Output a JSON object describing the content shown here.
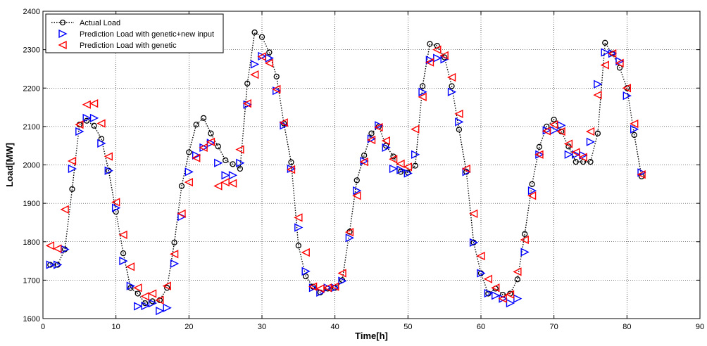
{
  "chart_data": {
    "type": "line",
    "title": "",
    "xlabel": "Time[h]",
    "ylabel": "Load[MW]",
    "xlim": [
      0,
      90
    ],
    "ylim": [
      1600,
      2400
    ],
    "xticks": [
      0,
      10,
      20,
      30,
      40,
      50,
      60,
      70,
      80,
      90
    ],
    "yticks": [
      1600,
      1700,
      1800,
      1900,
      2000,
      2100,
      2200,
      2300,
      2400
    ],
    "grid": true,
    "legend_position": "top-left",
    "series": [
      {
        "name": "Actual Load",
        "color": "#000000",
        "marker": "circle",
        "line": "dotted",
        "x": [
          1,
          2,
          3,
          4,
          5,
          6,
          7,
          8,
          9,
          10,
          11,
          12,
          13,
          14,
          15,
          16,
          17,
          18,
          19,
          20,
          21,
          22,
          23,
          24,
          25,
          26,
          27,
          28,
          29,
          30,
          31,
          32,
          33,
          34,
          35,
          36,
          37,
          38,
          39,
          40,
          41,
          42,
          43,
          44,
          45,
          46,
          47,
          48,
          49,
          50,
          51,
          52,
          53,
          54,
          55,
          56,
          57,
          58,
          59,
          60,
          61,
          62,
          63,
          64,
          65,
          66,
          67,
          68,
          69,
          70,
          71,
          72,
          73,
          74,
          75,
          76,
          77,
          78,
          79,
          80,
          81,
          82
        ],
        "y": [
          1740,
          1740,
          1780,
          1937,
          2105,
          2115,
          2102,
          2068,
          1985,
          1878,
          1770,
          1680,
          1665,
          1640,
          1645,
          1648,
          1680,
          1798,
          1945,
          2033,
          2105,
          2122,
          2082,
          2048,
          2012,
          2002,
          1990,
          2212,
          2345,
          2333,
          2293,
          2230,
          2108,
          2007,
          1790,
          1710,
          1683,
          1668,
          1678,
          1680,
          1700,
          1826,
          1960,
          2025,
          2082,
          2100,
          2050,
          2022,
          1982,
          1980,
          1998,
          2205,
          2315,
          2310,
          2280,
          2205,
          2092,
          1982,
          1798,
          1718,
          1665,
          1678,
          1662,
          1665,
          1702,
          1820,
          1950,
          2047,
          2100,
          2118,
          2087,
          2048,
          2008,
          2008,
          2008,
          2082,
          2318,
          2290,
          2253,
          2200,
          2078,
          1970
        ]
      },
      {
        "name": "Prediction Load with genetic+new input",
        "color": "#0000ff",
        "marker": "triangle-right",
        "line": "none",
        "x": [
          1,
          2,
          3,
          4,
          5,
          6,
          7,
          8,
          9,
          10,
          11,
          12,
          13,
          14,
          15,
          16,
          17,
          18,
          19,
          20,
          21,
          22,
          23,
          24,
          25,
          26,
          27,
          28,
          29,
          30,
          31,
          32,
          33,
          34,
          35,
          36,
          37,
          38,
          39,
          40,
          41,
          42,
          43,
          44,
          45,
          46,
          47,
          48,
          49,
          50,
          51,
          52,
          53,
          54,
          55,
          56,
          57,
          58,
          59,
          60,
          61,
          62,
          63,
          64,
          65,
          66,
          67,
          68,
          69,
          70,
          71,
          72,
          73,
          74,
          75,
          76,
          77,
          78,
          79,
          80,
          81,
          82
        ],
        "y": [
          1740,
          1740,
          1780,
          1990,
          2087,
          2122,
          2122,
          2056,
          1985,
          1888,
          1750,
          1685,
          1632,
          1633,
          1640,
          1620,
          1628,
          1743,
          1865,
          1982,
          2025,
          2045,
          2057,
          2005,
          1973,
          1973,
          2005,
          2157,
          2262,
          2283,
          2278,
          2193,
          2103,
          1990,
          1837,
          1723,
          1680,
          1668,
          1680,
          1680,
          1698,
          1810,
          1933,
          2010,
          2068,
          2103,
          2045,
          1990,
          1987,
          1978,
          2027,
          2190,
          2273,
          2278,
          2275,
          2190,
          2112,
          1982,
          1798,
          1718,
          1666,
          1660,
          1652,
          1640,
          1652,
          1773,
          1933,
          2027,
          2090,
          2090,
          2103,
          2027,
          2027,
          2025,
          2060,
          2210,
          2293,
          2290,
          2270,
          2180,
          2093,
          1980
        ]
      },
      {
        "name": "Prediction Load with genetic",
        "color": "#ff0000",
        "marker": "triangle-left",
        "line": "none",
        "x": [
          1,
          2,
          3,
          4,
          5,
          6,
          7,
          8,
          9,
          10,
          11,
          12,
          13,
          14,
          15,
          16,
          17,
          18,
          19,
          20,
          21,
          22,
          23,
          24,
          25,
          26,
          27,
          28,
          29,
          30,
          31,
          32,
          33,
          34,
          35,
          36,
          37,
          38,
          39,
          40,
          41,
          42,
          43,
          44,
          45,
          46,
          47,
          48,
          49,
          50,
          51,
          52,
          53,
          54,
          55,
          56,
          57,
          58,
          59,
          60,
          61,
          62,
          63,
          64,
          65,
          66,
          67,
          68,
          69,
          70,
          71,
          72,
          73,
          74,
          75,
          76,
          77,
          78,
          79,
          80,
          81,
          82
        ],
        "y": [
          1790,
          1782,
          1884,
          2010,
          2105,
          2157,
          2160,
          2108,
          2022,
          1903,
          1818,
          1735,
          1680,
          1658,
          1665,
          1648,
          1685,
          1768,
          1873,
          1955,
          2018,
          2045,
          2060,
          1945,
          1955,
          1952,
          2040,
          2160,
          2235,
          2282,
          2265,
          2197,
          2110,
          1988,
          1863,
          1772,
          1683,
          1678,
          1680,
          1683,
          1718,
          1825,
          1920,
          2008,
          2065,
          2098,
          2063,
          2015,
          2003,
          1995,
          2093,
          2177,
          2267,
          2300,
          2285,
          2228,
          2133,
          1990,
          1873,
          1763,
          1703,
          1680,
          1652,
          1663,
          1722,
          1805,
          1920,
          2027,
          2088,
          2105,
          2087,
          2055,
          2033,
          2020,
          2087,
          2182,
          2260,
          2290,
          2265,
          2200,
          2107,
          1975
        ]
      }
    ]
  }
}
